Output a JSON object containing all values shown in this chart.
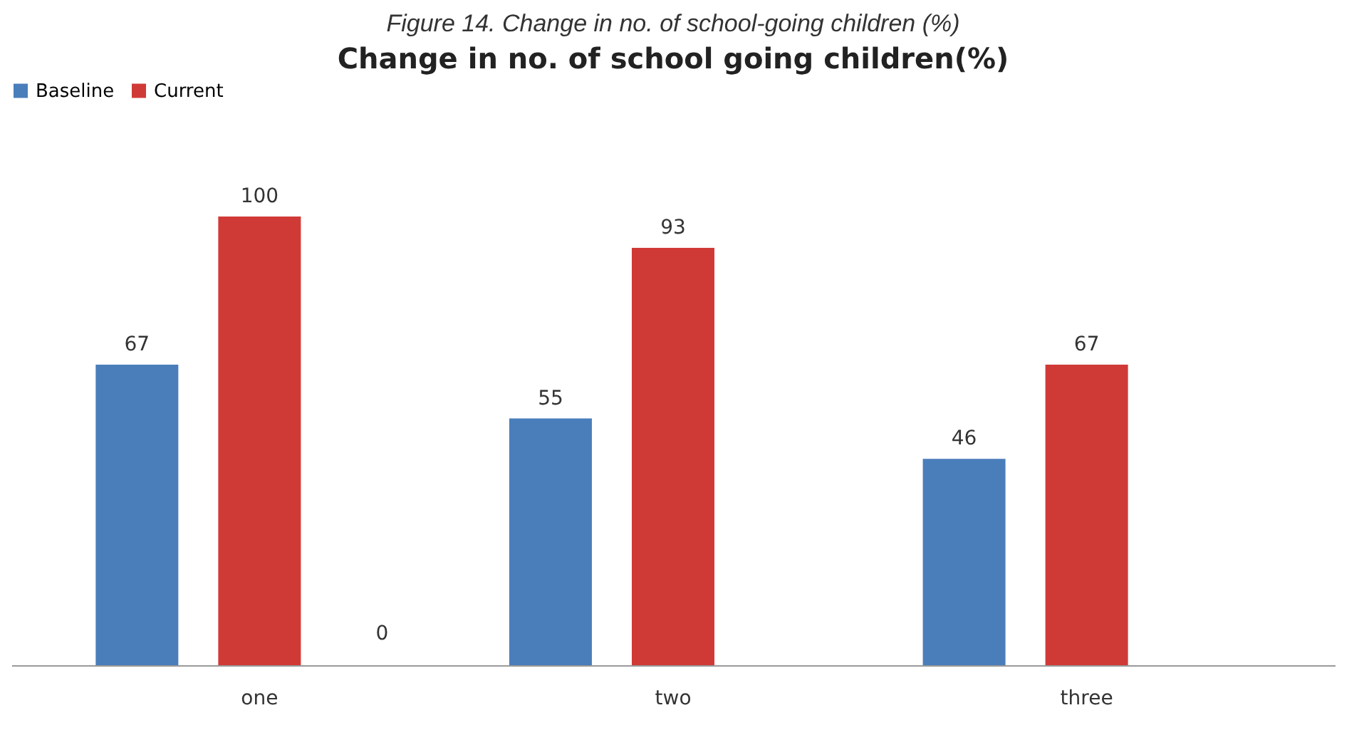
{
  "chart_data": {
    "type": "bar",
    "title": "Figure 14. Change in no. of school-going children (%)",
    "subtitle": "Change in no. of school going children(%)",
    "categories": [
      "one",
      "two",
      "three"
    ],
    "series": [
      {
        "name": "Baseline",
        "color": "#4a7ebb",
        "values": [
          67,
          55,
          46
        ]
      },
      {
        "name": "Current",
        "color": "#d03a36",
        "values": [
          100,
          93,
          67
        ]
      }
    ],
    "annotations": [
      "0"
    ],
    "data_labels": true,
    "legend": "top",
    "grid": false,
    "tick_labels": "x"
  }
}
